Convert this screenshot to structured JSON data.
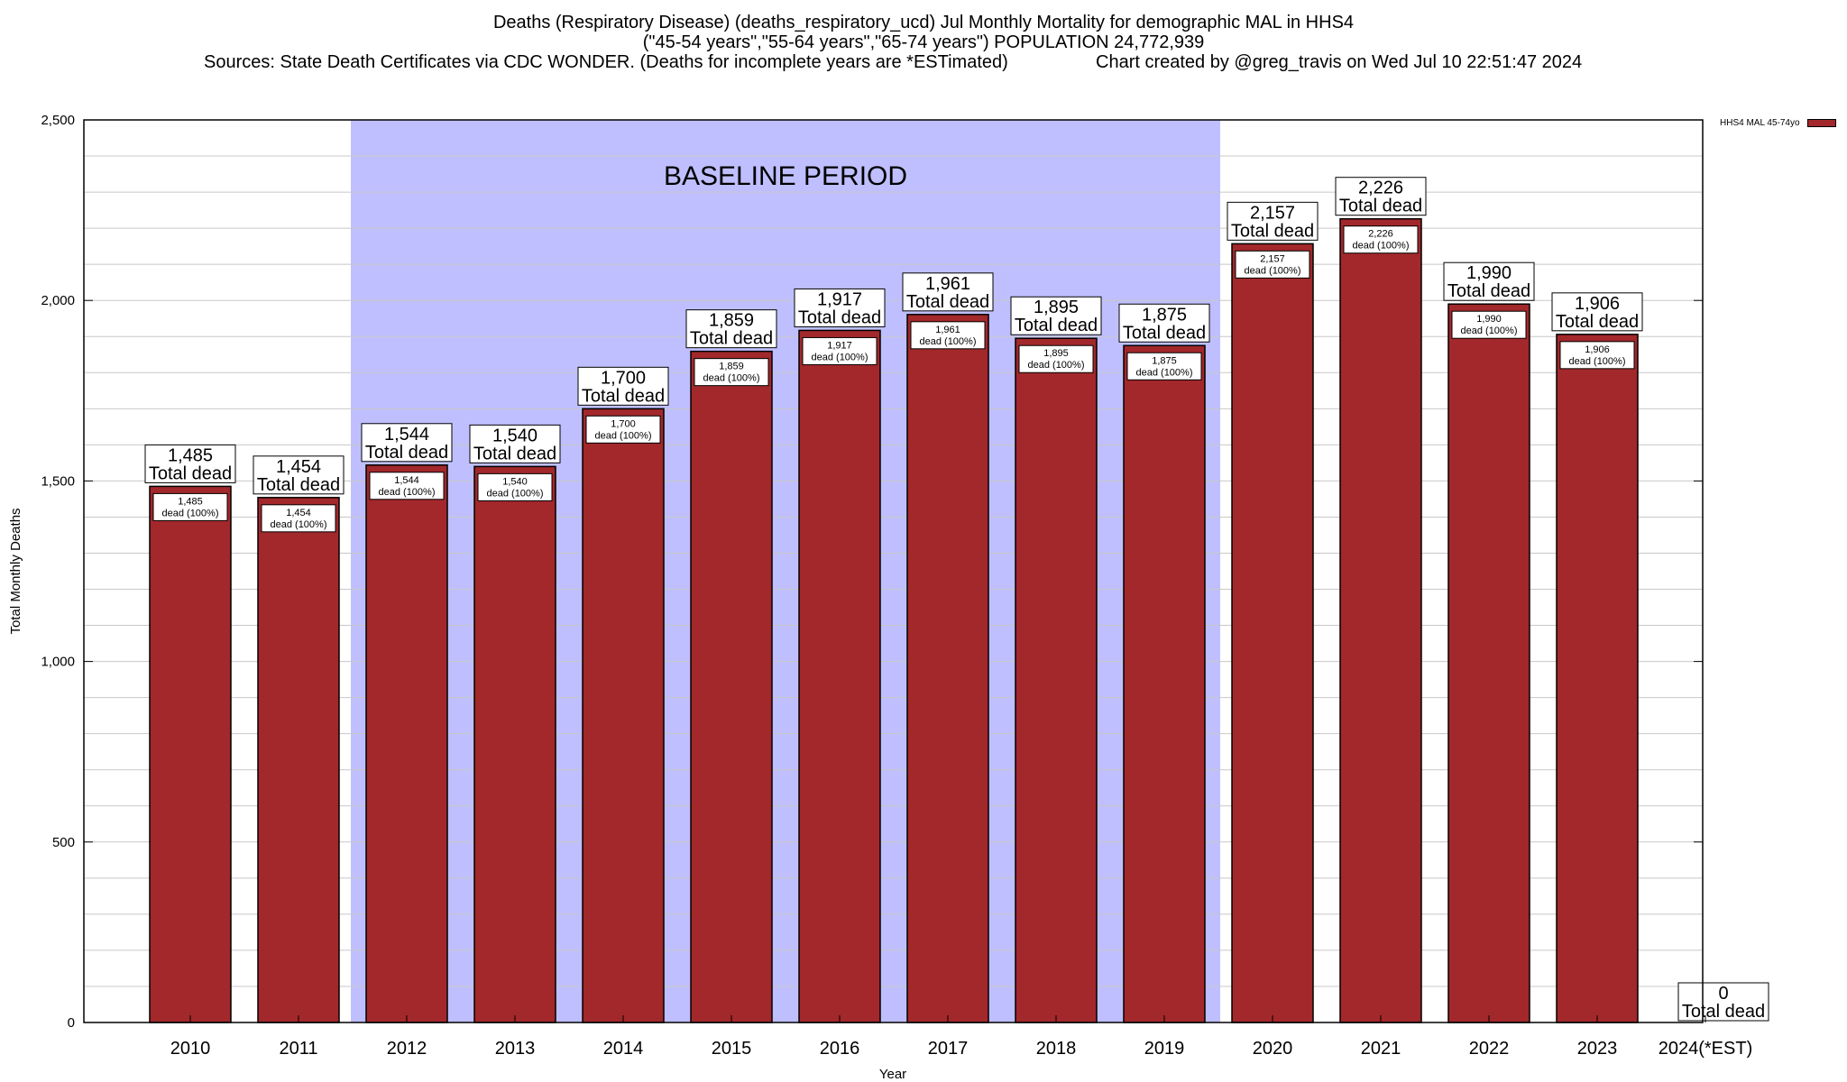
{
  "title": {
    "line1": "Deaths (Respiratory Disease) (deaths_respiratory_ucd) Jul Monthly Mortality for demographic MAL in HHS4",
    "line2": "(\"45-54 years\",\"55-64 years\",\"65-74 years\") POPULATION 24,772,939",
    "source": "Sources: State Death Certificates via CDC WONDER. (Deaths for incomplete years are *ESTimated)",
    "credit": "Chart created by @greg_travis on Wed Jul 10 22:51:47 2024"
  },
  "legend": {
    "label": "HHS4 MAL 45-74yo",
    "color": "#a2282b"
  },
  "colors": {
    "bar": "#a2282b",
    "baseline": "#bfbfff"
  },
  "chart_data": {
    "type": "bar",
    "xlabel": "Year",
    "ylabel": "Total Monthly Deaths",
    "ylim": [
      0,
      2500
    ],
    "y_ticks": [
      {
        "value": 0,
        "label": "0"
      },
      {
        "value": 500,
        "label": "500"
      },
      {
        "value": 1000,
        "label": "1,000"
      },
      {
        "value": 1500,
        "label": "1,500"
      },
      {
        "value": 2000,
        "label": "2,000"
      },
      {
        "value": 2500,
        "label": "2,500"
      }
    ],
    "grid": true,
    "legend_position": "top-right",
    "baseline": {
      "label": "BASELINE PERIOD",
      "from": "2012",
      "to": "2019"
    },
    "categories": [
      "2010",
      "2011",
      "2012",
      "2013",
      "2014",
      "2015",
      "2016",
      "2017",
      "2018",
      "2019",
      "2020",
      "2021",
      "2022",
      "2023",
      "2024(*EST)"
    ],
    "series": [
      {
        "name": "HHS4 MAL 45-74yo",
        "values": [
          1485,
          1454,
          1544,
          1540,
          1700,
          1859,
          1917,
          1961,
          1895,
          1875,
          2157,
          2226,
          1990,
          1906,
          0
        ],
        "top_labels": [
          "1,485",
          "1,454",
          "1,544",
          "1,540",
          "1,700",
          "1,859",
          "1,917",
          "1,961",
          "1,895",
          "1,875",
          "2,157",
          "2,226",
          "1,990",
          "1,906",
          "0"
        ],
        "top_sublabel": "Total dead",
        "inner_labels": [
          "1,485",
          "1,454",
          "1,544",
          "1,540",
          "1,700",
          "1,859",
          "1,917",
          "1,961",
          "1,895",
          "1,875",
          "2,157",
          "2,226",
          "1,990",
          "1,906"
        ],
        "inner_sublabel": "dead (100%)"
      }
    ]
  }
}
